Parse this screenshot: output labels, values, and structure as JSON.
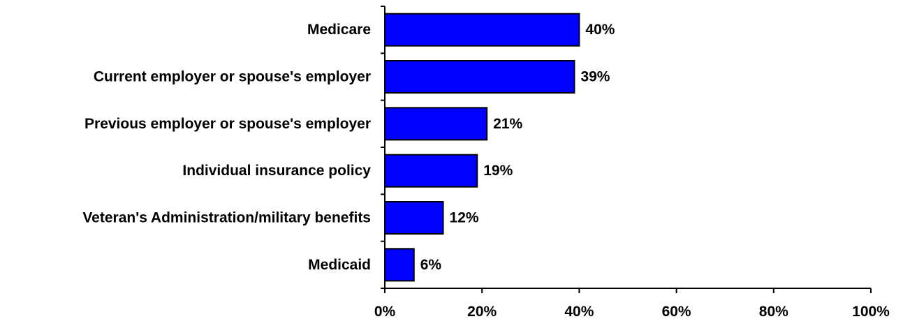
{
  "chart_data": {
    "type": "bar",
    "orientation": "horizontal",
    "categories": [
      "Medicare",
      "Current employer or spouse's employer",
      "Previous employer or spouse's employer",
      "Individual insurance policy",
      "Veteran's Administration/military benefits",
      "Medicaid"
    ],
    "values": [
      40,
      39,
      21,
      19,
      12,
      6
    ],
    "value_labels": [
      "40%",
      "39%",
      "21%",
      "19%",
      "12%",
      "6%"
    ],
    "x_ticks": [
      0,
      20,
      40,
      60,
      80,
      100
    ],
    "x_tick_labels": [
      "0%",
      "20%",
      "40%",
      "60%",
      "80%",
      "100%"
    ],
    "xlim": [
      0,
      100
    ],
    "grid": false,
    "bar_color": "#0000FF",
    "bar_edge_color": "#000000"
  }
}
